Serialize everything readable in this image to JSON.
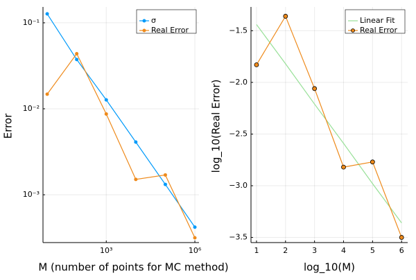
{
  "chart_data": [
    {
      "type": "line",
      "xscale": "log",
      "yscale": "log",
      "grid": true,
      "legend": "top-right",
      "xlabel": "M (number of points for MC method)",
      "ylabel": "Error",
      "x": [
        10,
        100,
        1000,
        10000,
        100000,
        1000000
      ],
      "xlim": [
        7.2,
        1380000
      ],
      "ylim": [
        0.000278,
        0.153
      ],
      "xticks": [
        {
          "value": 1000,
          "label": "10³"
        },
        {
          "value": 1000000,
          "label": "10⁶"
        }
      ],
      "yticks": [
        {
          "value": 0.001,
          "label": "10⁻³"
        },
        {
          "value": 0.01,
          "label": "10⁻²"
        },
        {
          "value": 0.1,
          "label": "10⁻¹"
        }
      ],
      "series": [
        {
          "name": "σ",
          "color": "#009afa",
          "marker": true,
          "values": [
            0.127,
            0.0374,
            0.0127,
            0.0041,
            0.00132,
            0.00042
          ]
        },
        {
          "name": "Real Error",
          "color": "#ee8a1b",
          "marker": true,
          "values": [
            0.0148,
            0.0437,
            0.0087,
            0.00151,
            0.0017,
            0.000316
          ]
        }
      ]
    },
    {
      "type": "line",
      "grid": true,
      "legend": "top-right",
      "xlabel": "log_10(M)",
      "ylabel": "log_10(Real Error)",
      "x": [
        1,
        2,
        3,
        4,
        5,
        6
      ],
      "xlim": [
        0.81,
        6.21
      ],
      "ylim": [
        -3.55,
        -1.27
      ],
      "xticks": [
        1,
        2,
        3,
        4,
        5,
        6
      ],
      "yticks": [
        {
          "value": -3.5,
          "label": "−3.5"
        },
        {
          "value": -3.0,
          "label": "−3.0"
        },
        {
          "value": -2.5,
          "label": "−2.5"
        },
        {
          "value": -2.0,
          "label": "−2.0"
        },
        {
          "value": -1.5,
          "label": "−1.5"
        }
      ],
      "series": [
        {
          "name": "Linear Fit",
          "color": "#98e098",
          "marker": false,
          "values": [
            -1.44,
            -1.82,
            -2.21,
            -2.59,
            -2.98,
            -3.36
          ]
        },
        {
          "name": "Real Error",
          "color": "#ee8a1b",
          "marker": true,
          "values": [
            -1.83,
            -1.36,
            -2.06,
            -2.82,
            -2.77,
            -3.5
          ]
        }
      ]
    }
  ]
}
